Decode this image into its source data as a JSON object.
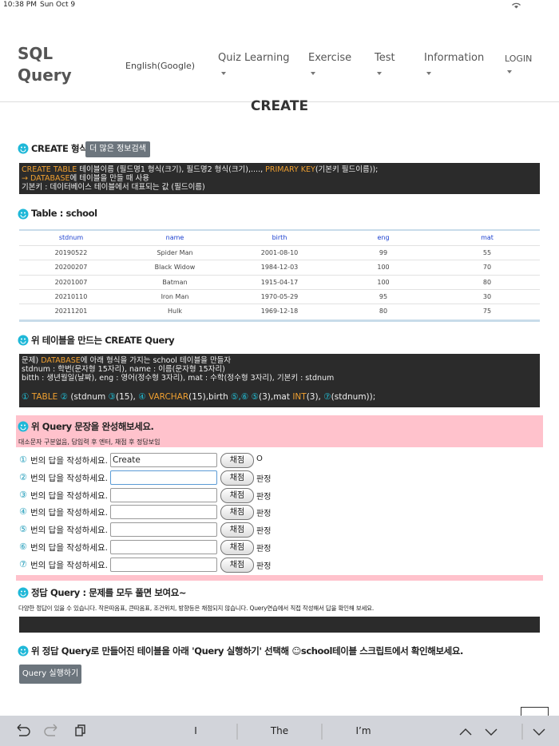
{
  "status_bar": {
    "time": "10:38 PM",
    "date": "Sun Oct 9"
  },
  "header": {
    "logo": [
      "SQL",
      "Query"
    ],
    "language": "English(Google)",
    "nav": [
      "Quiz Learning",
      "Exercise",
      "Test",
      "Information",
      "LOGIN"
    ]
  },
  "page_title": "CREATE",
  "syntax_section": {
    "heading": "CREATE 형식",
    "button": "더 많은 정보검색",
    "code_lines": [
      [
        {
          "text": "CREATE TABLE",
          "color": "#f0a030"
        },
        {
          "text": " 테이블이름 (필드명1 형식(크기), 필드명2 형식(크기),...., "
        },
        {
          "text": "PRIMARY KEY",
          "color": "#f0a030"
        },
        {
          "text": "(기본키 필드이름));"
        }
      ],
      [
        {
          "text": "→ DATABASE",
          "color": "#f0a030"
        },
        {
          "text": "에 테이블을 만들 때 사용"
        }
      ],
      [
        {
          "text": "기본키 : 데이터베이스 테이블에서 대표되는 값 (필드이름)"
        }
      ]
    ]
  },
  "table_section": {
    "heading": "Table : school",
    "columns": [
      "stdnum",
      "name",
      "birth",
      "eng",
      "mat"
    ],
    "rows": [
      [
        "20190522",
        "Spider Man",
        "2001-08-10",
        99,
        55
      ],
      [
        "20200207",
        "Black Widow",
        "1984-12-03",
        100,
        70
      ],
      [
        "20201007",
        "Batman",
        "1915-04-17",
        100,
        80
      ],
      [
        "20210110",
        "Iron Man",
        "1970-05-29",
        95,
        30
      ],
      [
        "20211201",
        "Hulk",
        "1969-12-18",
        80,
        75
      ]
    ]
  },
  "query_section": {
    "heading": "위 테이블을 만드는 CREATE Query",
    "problem_lines": [
      [
        {
          "text": "문제) "
        },
        {
          "text": "DATABASE",
          "color": "#f0a030"
        },
        {
          "text": "에 아래 형식을 가지는 school 테이블을 만들자"
        }
      ],
      [
        {
          "text": "stdnum : 학번(문자형 15자리), name : 이름(문자형 15자리)"
        }
      ],
      [
        {
          "text": "bitth : 생년월일(날짜), eng : 영어(정수형 3자리), mat : 수학(정수형 3자리), 기본키 : stdnum"
        }
      ]
    ],
    "template": [
      {
        "text": "①",
        "color": "#20c0d8"
      },
      {
        "text": " TABLE ",
        "color": "#f0a030"
      },
      {
        "text": "②",
        "color": "#20c0d8"
      },
      {
        "text": " (stdnum "
      },
      {
        "text": "③",
        "color": "#20c0d8"
      },
      {
        "text": "(15), "
      },
      {
        "text": "④",
        "color": "#20c0d8"
      },
      {
        "text": " VARCHAR",
        "color": "#f0a030"
      },
      {
        "text": "(15),birth "
      },
      {
        "text": "⑤,⑥ ⑤",
        "color": "#20c0d8"
      },
      {
        "text": "(3),mat "
      },
      {
        "text": "INT",
        "color": "#f0a030"
      },
      {
        "text": "(3), "
      },
      {
        "text": "⑦",
        "color": "#20c0d8"
      },
      {
        "text": "(stdnum));"
      }
    ]
  },
  "exercise": {
    "heading": "위 Query 문장을 완성해보세요.",
    "note": "대소문자 구분없음, 답입력 후 엔터, 채점 후 정답보임",
    "rows": [
      {
        "number": "①",
        "label": "번의 답을 작성하세요.",
        "answer": "Create",
        "button": "채점",
        "result": "O"
      },
      {
        "number": "②",
        "label": "번의 답을 작성하세요.",
        "button": "채점",
        "result": "판정"
      },
      {
        "number": "③",
        "label": "번의 답을 작성하세요.",
        "button": "채점",
        "result": "판정"
      },
      {
        "number": "④",
        "label": "번의 답을 작성하세요.",
        "button": "채점",
        "result": "판정"
      },
      {
        "number": "⑤",
        "label": "번의 답을 작성하세요.",
        "button": "채점",
        "result": "판정"
      },
      {
        "number": "⑥",
        "label": "번의 답을 작성하세요.",
        "button": "채점",
        "result": "판정"
      },
      {
        "number": "⑦",
        "label": "번의 답을 작성하세요.",
        "button": "채점",
        "result": "판정"
      }
    ]
  },
  "answer_section": {
    "heading": "정답 Query : 문제를 모두 풀면 보여요~",
    "note": "다양한 정답이 있을 수 있습니다. 작은따옴표, 큰따옴표, 조건위치, 방향등은 채점되지 않습니다. Query연습에서 직접 작성해서 답을 확인해 보세요."
  },
  "run_section": {
    "heading": "위 정답 Query로 만들어진 테이블을 아래 'Query 실행하기' 선택해 ☺school테이블 스크립트에서 확인해보세요.",
    "button": "Query 실행하기"
  },
  "keyboard_bar": {
    "suggestions": [
      "I",
      "The",
      "I’m"
    ]
  }
}
